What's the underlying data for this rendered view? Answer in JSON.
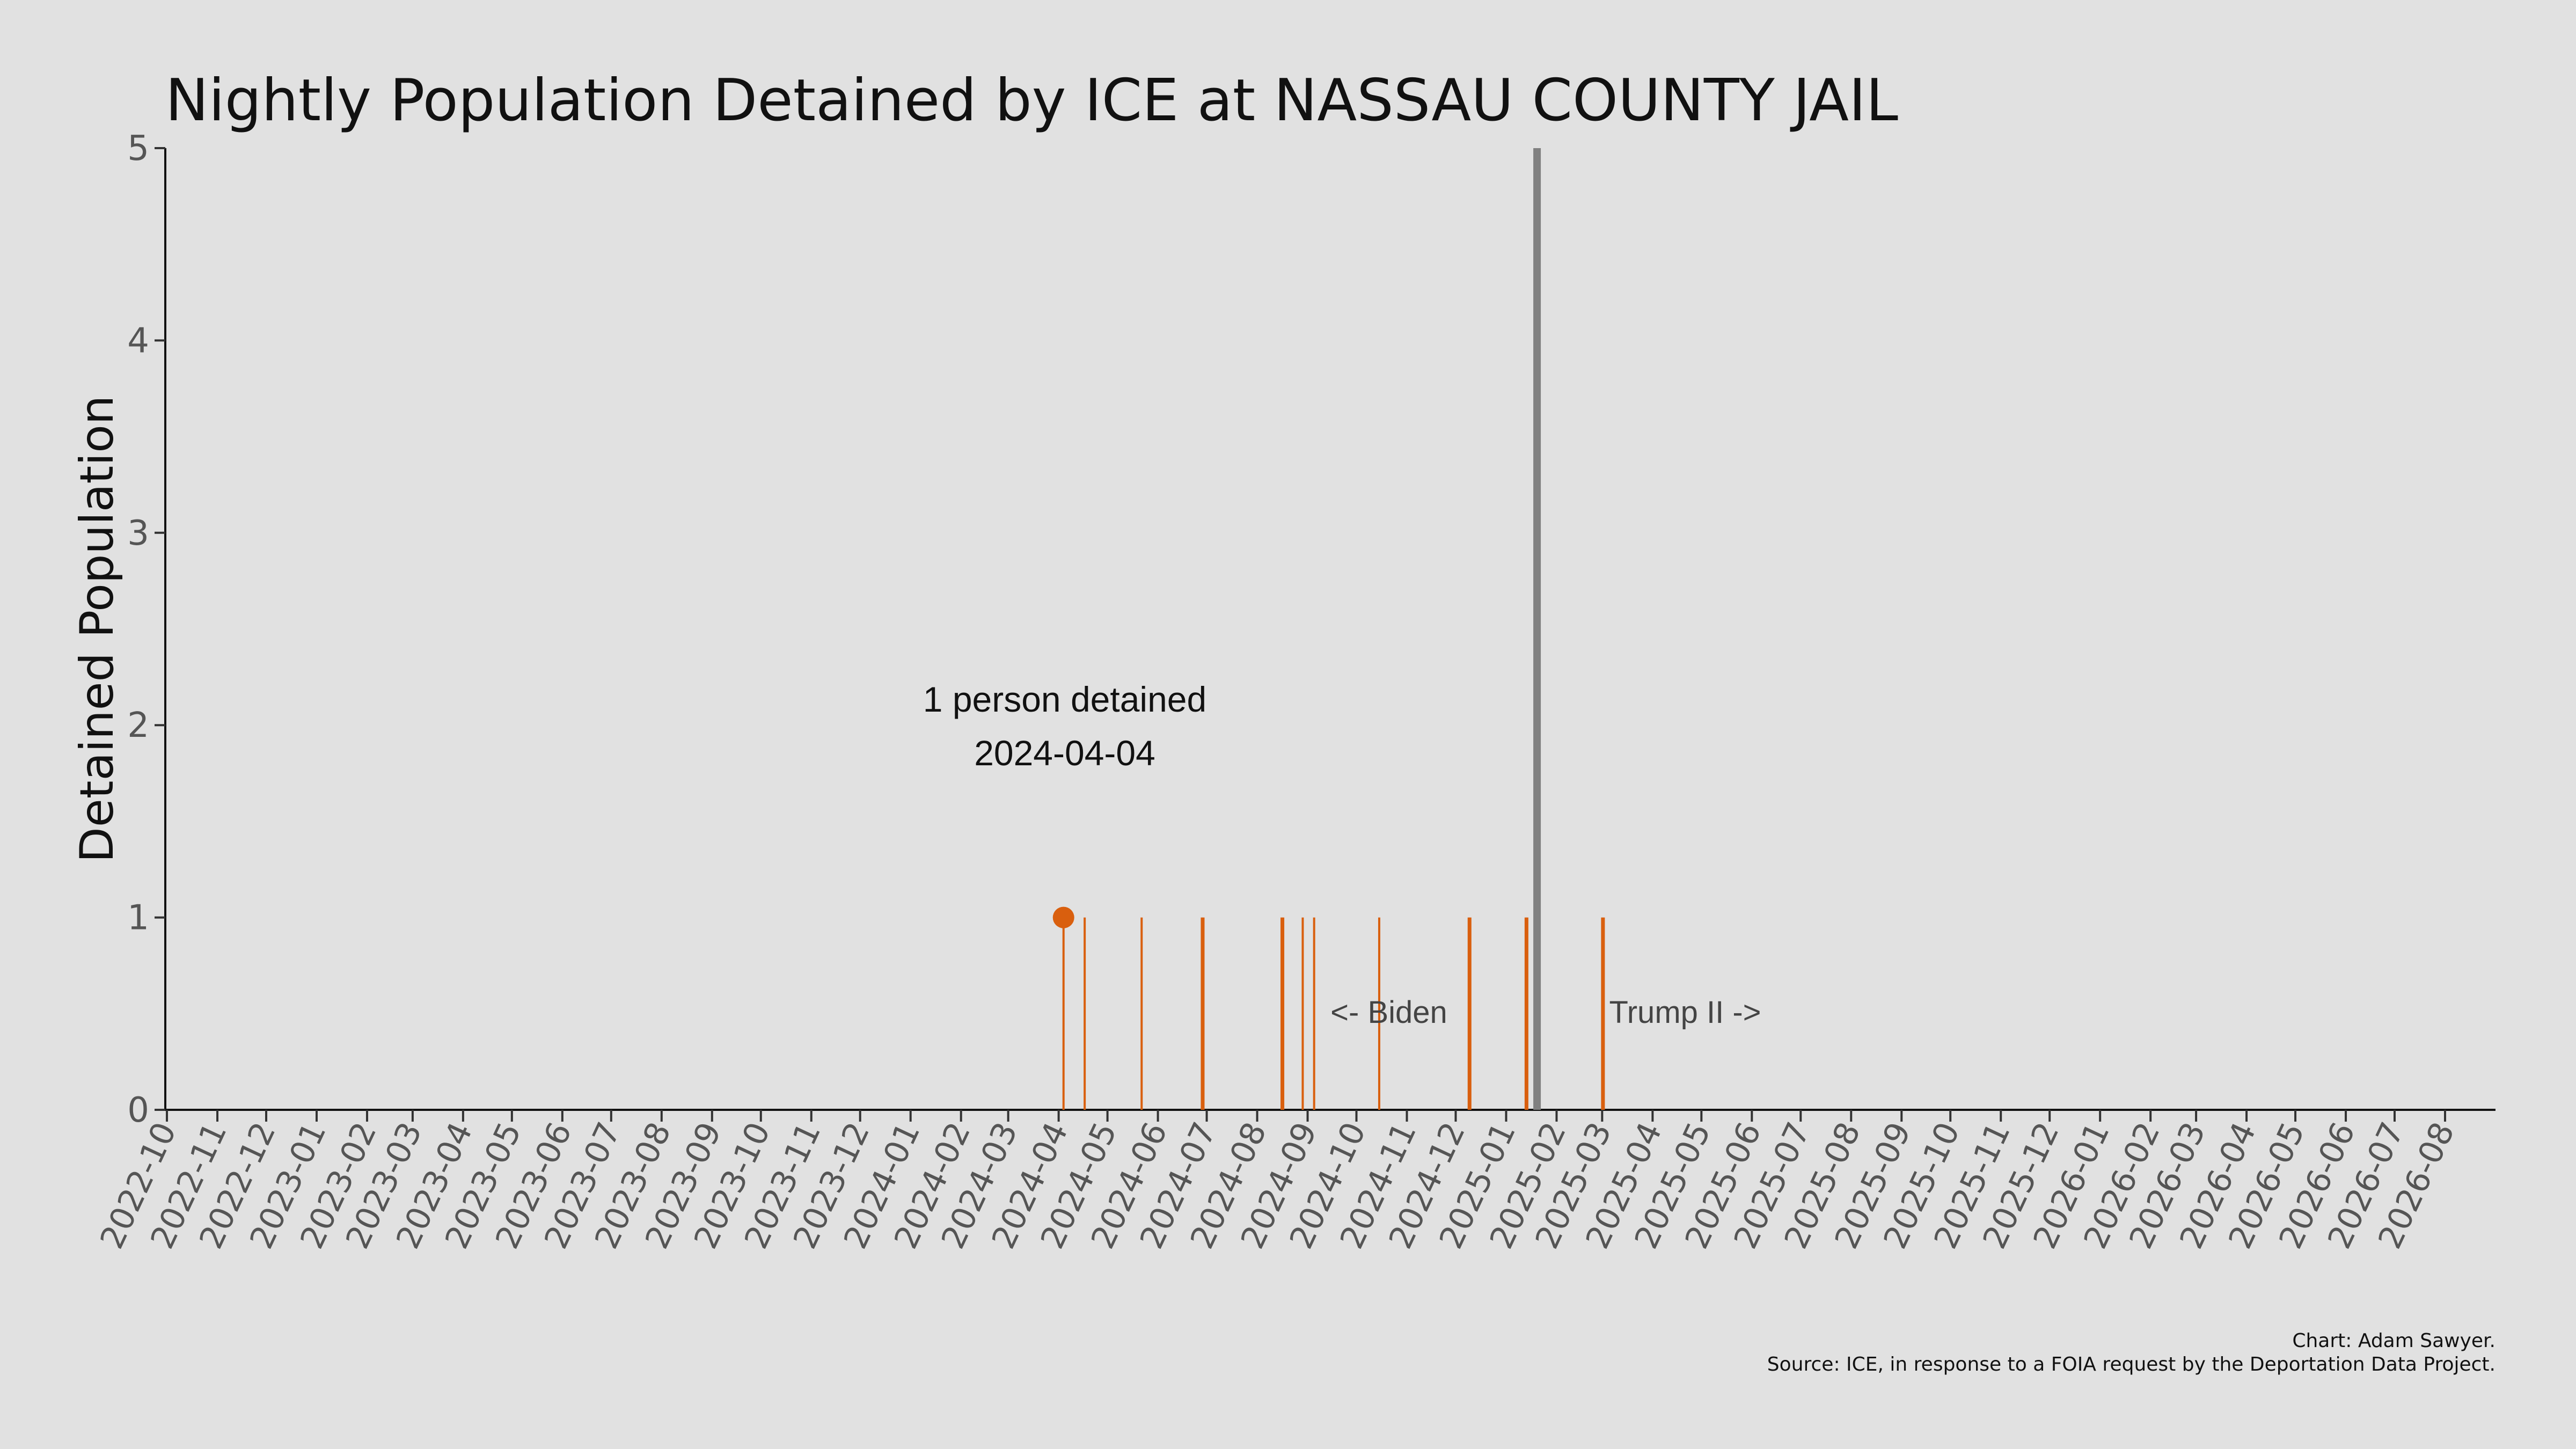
{
  "chart_data": {
    "type": "bar",
    "title": "Nightly Population Detained by ICE at NASSAU COUNTY JAIL",
    "ylabel": "Detained Population",
    "xlabel": "",
    "xlim": [
      "2022-09-30",
      "2026-09-01"
    ],
    "ylim": [
      0,
      5
    ],
    "yticks": [
      0,
      1,
      2,
      3,
      4,
      5
    ],
    "xticks": [
      "2022-10",
      "2022-11",
      "2022-12",
      "2023-01",
      "2023-02",
      "2023-03",
      "2023-04",
      "2023-05",
      "2023-06",
      "2023-07",
      "2023-08",
      "2023-09",
      "2023-10",
      "2023-11",
      "2023-12",
      "2024-01",
      "2024-02",
      "2024-03",
      "2024-04",
      "2024-05",
      "2024-06",
      "2024-07",
      "2024-08",
      "2024-09",
      "2024-10",
      "2024-11",
      "2024-12",
      "2025-01",
      "2025-02",
      "2025-03",
      "2025-04",
      "2025-05",
      "2025-06",
      "2025-07",
      "2025-08",
      "2025-09",
      "2025-10",
      "2025-11",
      "2025-12",
      "2026-01",
      "2026-02",
      "2026-03",
      "2026-04",
      "2026-05",
      "2026-06",
      "2026-07",
      "2026-08"
    ],
    "grid": false,
    "series": [
      {
        "color": "#d95f0e",
        "points": [
          {
            "x": "2024-04-04",
            "y": 1
          },
          {
            "x": "2024-04-17",
            "y": 1
          },
          {
            "x": "2024-05-22",
            "y": 1
          },
          {
            "x": "2024-06-28",
            "y": 1
          },
          {
            "x": "2024-06-29",
            "y": 1
          },
          {
            "x": "2024-08-16",
            "y": 1
          },
          {
            "x": "2024-08-17",
            "y": 1
          },
          {
            "x": "2024-08-29",
            "y": 1
          },
          {
            "x": "2024-09-05",
            "y": 1
          },
          {
            "x": "2024-10-15",
            "y": 1
          },
          {
            "x": "2024-12-09",
            "y": 1
          },
          {
            "x": "2024-12-10",
            "y": 1
          },
          {
            "x": "2025-01-13",
            "y": 1
          },
          {
            "x": "2025-01-14",
            "y": 1
          },
          {
            "x": "2025-03-01",
            "y": 1
          },
          {
            "x": "2025-03-02",
            "y": 1
          }
        ]
      }
    ],
    "highlight": {
      "x": "2024-04-04",
      "y": 1,
      "label_line1": "1 person detained",
      "label_line2": "2024-04-04"
    },
    "inauguration": {
      "x": "2025-01-20",
      "color": "#808080"
    },
    "era_labels": {
      "left": "<- Biden",
      "right": "Trump II ->"
    },
    "caption": {
      "line1": "Chart: Adam Sawyer.",
      "line2": "Source: ICE, in response to a FOIA request by the Deportation Data Project."
    }
  }
}
